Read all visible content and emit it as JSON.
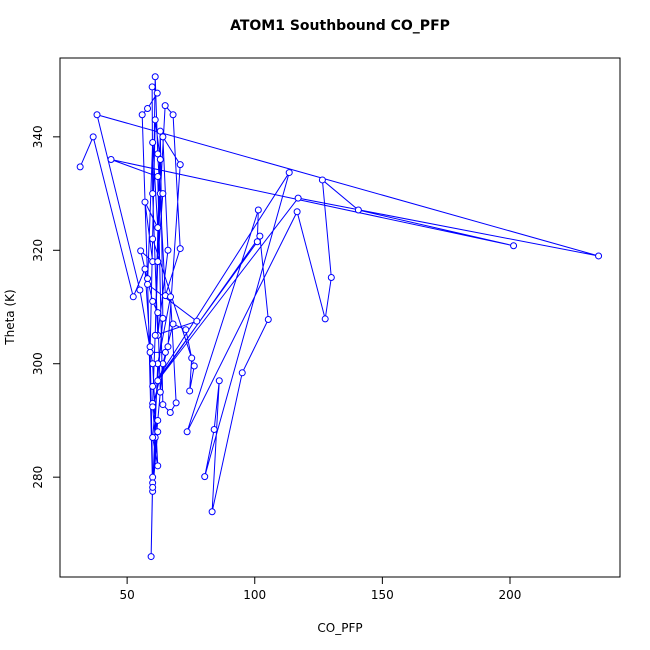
{
  "chart_data": {
    "type": "line",
    "title": "ATOM1 Southbound CO_PFP",
    "xlabel": "CO_PFP",
    "ylabel": "Theta (K)",
    "color": "#0000ff",
    "markers": true,
    "xlim": [
      23.7,
      243.1
    ],
    "ylim": [
      262.4,
      353.9
    ],
    "xticks": [
      50,
      100,
      150,
      200
    ],
    "yticks": [
      280,
      300,
      320,
      340
    ],
    "x": [
      31.6,
      36.7,
      52.4,
      57,
      59,
      60,
      59.4,
      60,
      62,
      64,
      68,
      73,
      75.3,
      74.5,
      76.3,
      60,
      61,
      62,
      65,
      70.8,
      68,
      64.9,
      63,
      60,
      62,
      60,
      58,
      55.9,
      58,
      61.8,
      59.8,
      60,
      62,
      66,
      64,
      70.8,
      66,
      60,
      61,
      60,
      62,
      67,
      69.2,
      66.9,
      64,
      62,
      43.7,
      201.4,
      140.6,
      126.5,
      130,
      127.6,
      116.6,
      73.5,
      101.4,
      101,
      60,
      113.5,
      80.4,
      84.1,
      86.1,
      83.3,
      95.1,
      105.3,
      102,
      62,
      117,
      234.7,
      38.2,
      55,
      60,
      62,
      60,
      64,
      63,
      61,
      77.3,
      58,
      60,
      62,
      57,
      60,
      55.3,
      60,
      62,
      63,
      65,
      59,
      61,
      63,
      62,
      64
    ],
    "series": [
      {
        "name": "Theta",
        "values": [
          334.7,
          340,
          311.8,
          316.7,
          303,
          280,
          266,
          279,
          290,
          300,
          307,
          306,
          301,
          295.2,
          299.6,
          322,
          350.6,
          337,
          312,
          320.3,
          343.9,
          345.5,
          330,
          293,
          288,
          277.5,
          315,
          343.9,
          345,
          347.7,
          348.8,
          330,
          305,
          320,
          340,
          335.1,
          303,
          292.4,
          287,
          278.2,
          300,
          311.8,
          293.1,
          291.4,
          292.8,
          333,
          336,
          320.8,
          327.1,
          332.4,
          315.2,
          307.9,
          326.8,
          288,
          327.1,
          321.5,
          296,
          333.7,
          280.1,
          288.4,
          297,
          273.9,
          298.4,
          307.8,
          322.5,
          297,
          329.2,
          319,
          343.9,
          313,
          300,
          282,
          287,
          308,
          341,
          305,
          307.5,
          314,
          339,
          324,
          328.5,
          318,
          319.9,
          311,
          309,
          295,
          302,
          302,
          343,
          336,
          318,
          330
        ]
      }
    ]
  }
}
